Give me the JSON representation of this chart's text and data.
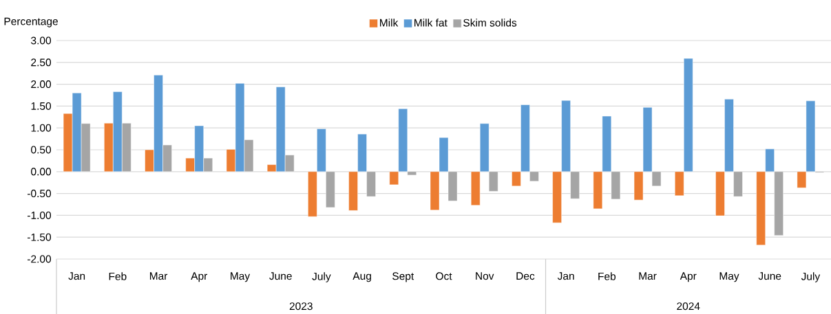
{
  "chart_data": {
    "type": "bar",
    "ylabel": "Percentage",
    "categories": [
      "Jan",
      "Feb",
      "Mar",
      "Apr",
      "May",
      "June",
      "July",
      "Aug",
      "Sept",
      "Oct",
      "Nov",
      "Dec",
      "Jan",
      "Feb",
      "Mar",
      "Apr",
      "May",
      "June",
      "July"
    ],
    "series": [
      {
        "name": "Milk",
        "color": "#ed7d31",
        "values": [
          1.33,
          1.11,
          0.5,
          0.31,
          0.51,
          0.16,
          -1.03,
          -0.89,
          -0.3,
          -0.88,
          -0.77,
          -0.33,
          -1.17,
          -0.85,
          -0.65,
          -0.55,
          -1.01,
          -1.68,
          -0.37
        ]
      },
      {
        "name": "Milk fat",
        "color": "#5b9bd5",
        "values": [
          1.8,
          1.83,
          2.21,
          1.05,
          2.02,
          1.94,
          0.98,
          0.86,
          1.44,
          0.78,
          1.1,
          1.53,
          1.63,
          1.27,
          1.47,
          2.59,
          1.66,
          0.52,
          1.62
        ]
      },
      {
        "name": "Skim solids",
        "color": "#a5a5a5",
        "values": [
          1.1,
          1.11,
          0.61,
          0.31,
          0.73,
          0.38,
          -0.82,
          -0.57,
          -0.08,
          -0.67,
          -0.45,
          -0.22,
          -0.62,
          -0.63,
          -0.33,
          null,
          -0.57,
          -1.46,
          -0.02
        ]
      }
    ],
    "ylim": [
      -2,
      3
    ],
    "yticks": [
      {
        "value": -2,
        "label": "-2.00"
      },
      {
        "value": -1.5,
        "label": "-1.50"
      },
      {
        "value": -1,
        "label": "-1.00"
      },
      {
        "value": -0.5,
        "label": "-0.50"
      },
      {
        "value": 0,
        "label": "0.00"
      },
      {
        "value": 0.5,
        "label": "0.50"
      },
      {
        "value": 1,
        "label": "1.00"
      },
      {
        "value": 1.5,
        "label": "1.50"
      },
      {
        "value": 2,
        "label": "2.00"
      },
      {
        "value": 2.5,
        "label": "2.50"
      },
      {
        "value": 3,
        "label": "3.00"
      }
    ],
    "grid": "y",
    "legend": "top",
    "annotations": [
      "2023",
      "2024"
    ]
  }
}
